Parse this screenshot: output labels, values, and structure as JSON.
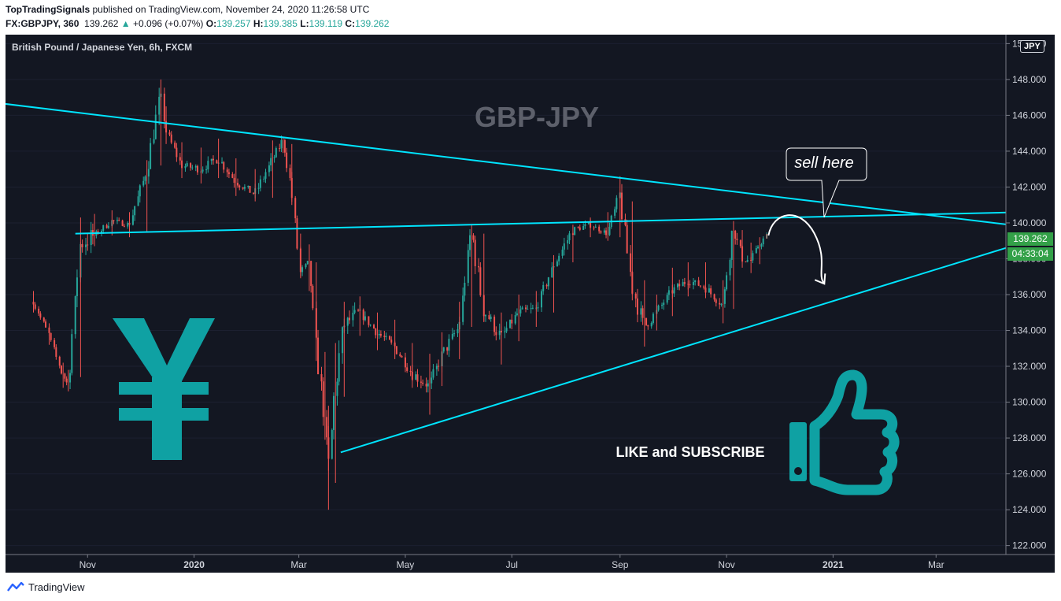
{
  "header": {
    "publisher": "TopTradingSignals",
    "publish_text": "published on TradingView.com, November 24, 2020 11:26:58 UTC",
    "symbol": "FX:GBPJPY, 360",
    "last": "139.262",
    "change": "+0.096 (+0.07%)",
    "o_label": "O:",
    "o_value": "139.257",
    "h_label": "H:",
    "h_value": "139.385",
    "l_label": "L:",
    "l_value": "139.119",
    "c_label": "C:",
    "c_value": "139.262"
  },
  "chart": {
    "instrument_title": "British Pound / Japanese Yen, 6h, FXCM",
    "watermark": "GBP-JPY",
    "cta": "LIKE and SUBSCRIBE",
    "bubble": "sell here",
    "currency": "JPY",
    "last_price_tag": "139.262",
    "countdown_tag": "04:33:04",
    "colors": {
      "background": "#131722",
      "up": "#26a69a",
      "down": "#ef5350",
      "trendline": "#00e5ff",
      "icons": "#0fa1a3",
      "price_tag": "#33a148"
    }
  },
  "footer": {
    "brand": "TradingView"
  },
  "chart_data": {
    "type": "candlestick",
    "x_ticks": [
      "Nov",
      "2020",
      "Mar",
      "May",
      "Jul",
      "Sep",
      "Nov",
      "2021",
      "Mar"
    ],
    "y_ticks": [
      "122.000",
      "124.000",
      "126.000",
      "128.000",
      "130.000",
      "132.000",
      "134.000",
      "136.000",
      "138.000",
      "140.000",
      "142.000",
      "144.000",
      "146.000",
      "148.000",
      "150.000"
    ],
    "ylim": [
      121.5,
      150.5
    ],
    "series": [
      {
        "name": "GBPJPY",
        "x": [
          "2019-10-01",
          "2019-10-10",
          "2019-10-18",
          "2019-10-21",
          "2019-10-28",
          "2019-11-05",
          "2019-11-15",
          "2019-11-25",
          "2019-12-05",
          "2019-12-13",
          "2019-12-16",
          "2019-12-25",
          "2020-01-05",
          "2020-01-15",
          "2020-01-25",
          "2020-02-05",
          "2020-02-15",
          "2020-02-21",
          "2020-02-26",
          "2020-03-02",
          "2020-03-07",
          "2020-03-11",
          "2020-03-16",
          "2020-03-18",
          "2020-03-22",
          "2020-03-27",
          "2020-04-05",
          "2020-04-15",
          "2020-04-25",
          "2020-05-05",
          "2020-05-15",
          "2020-05-22",
          "2020-06-01",
          "2020-06-08",
          "2020-06-15",
          "2020-06-25",
          "2020-07-05",
          "2020-07-15",
          "2020-07-25",
          "2020-08-05",
          "2020-08-15",
          "2020-08-25",
          "2020-09-01",
          "2020-09-08",
          "2020-09-15",
          "2020-09-22",
          "2020-10-01",
          "2020-10-10",
          "2020-10-20",
          "2020-10-30",
          "2020-11-05",
          "2020-11-10",
          "2020-11-15",
          "2020-11-20",
          "2020-11-24"
        ],
        "close": [
          135.6,
          133.8,
          131.5,
          131.0,
          138.8,
          139.3,
          140.1,
          139.9,
          142.9,
          147.2,
          145.2,
          143.2,
          143.0,
          143.6,
          142.3,
          141.6,
          143.5,
          144.6,
          141.9,
          137.2,
          137.7,
          133.2,
          129.2,
          125.8,
          130.8,
          134.3,
          135.0,
          133.9,
          133.1,
          131.6,
          130.9,
          132.6,
          134.2,
          139.6,
          135.2,
          133.6,
          135.0,
          135.2,
          137.6,
          139.6,
          139.9,
          139.4,
          141.6,
          136.5,
          134.2,
          135.0,
          136.2,
          136.8,
          136.4,
          135.4,
          139.8,
          138.0,
          137.9,
          138.8,
          139.262
        ],
        "high": [
          136.2,
          134.4,
          132.2,
          131.8,
          140.3,
          140.5,
          140.7,
          140.6,
          143.5,
          148.0,
          146.5,
          144.5,
          144.2,
          144.7,
          143.6,
          143.0,
          144.6,
          144.8,
          144.4,
          139.4,
          138.8,
          137.8,
          132.8,
          129.8,
          133.3,
          135.6,
          135.9,
          135.0,
          134.6,
          133.3,
          132.7,
          133.9,
          135.6,
          139.9,
          139.4,
          135.0,
          136.0,
          136.2,
          138.2,
          139.9,
          140.3,
          140.6,
          142.6,
          141.2,
          136.8,
          136.0,
          137.5,
          137.8,
          137.8,
          136.8,
          140.1,
          139.6,
          138.9,
          139.2,
          139.385
        ],
        "low": [
          135.0,
          133.2,
          130.8,
          130.6,
          131.4,
          138.7,
          139.3,
          139.2,
          139.5,
          143.2,
          144.4,
          142.5,
          142.2,
          142.5,
          141.5,
          141.2,
          141.4,
          143.9,
          141.0,
          137.0,
          136.2,
          132.3,
          127.9,
          124.0,
          125.5,
          130.3,
          133.7,
          132.9,
          132.4,
          130.8,
          129.3,
          130.9,
          132.4,
          134.2,
          134.5,
          132.1,
          133.4,
          134.2,
          135.0,
          137.8,
          139.2,
          139.0,
          139.2,
          136.0,
          133.1,
          134.0,
          134.8,
          135.9,
          135.8,
          134.4,
          135.2,
          137.5,
          137.2,
          137.7,
          139.119
        ]
      }
    ],
    "annotations": [
      "sell here",
      "LIKE and SUBSCRIBE",
      "GBP-JPY"
    ],
    "trendlines": [
      {
        "name": "descending-resistance",
        "from": [
          "2019-09-01",
          146.8
        ],
        "to": [
          "2021-04-20",
          139.8
        ]
      },
      {
        "name": "horizontal-neckline",
        "from": [
          "2019-10-25",
          139.4
        ],
        "to": [
          "2021-04-20",
          140.6
        ]
      },
      {
        "name": "ascending-support",
        "from": [
          "2020-03-25",
          127.2
        ],
        "to": [
          "2021-04-20",
          138.9
        ]
      }
    ],
    "projected_path": {
      "from": [
        "2020-11-25",
        139.3
      ],
      "peak": [
        "2020-12-05",
        140.3
      ],
      "to": [
        "2020-12-27",
        136.6
      ]
    }
  }
}
